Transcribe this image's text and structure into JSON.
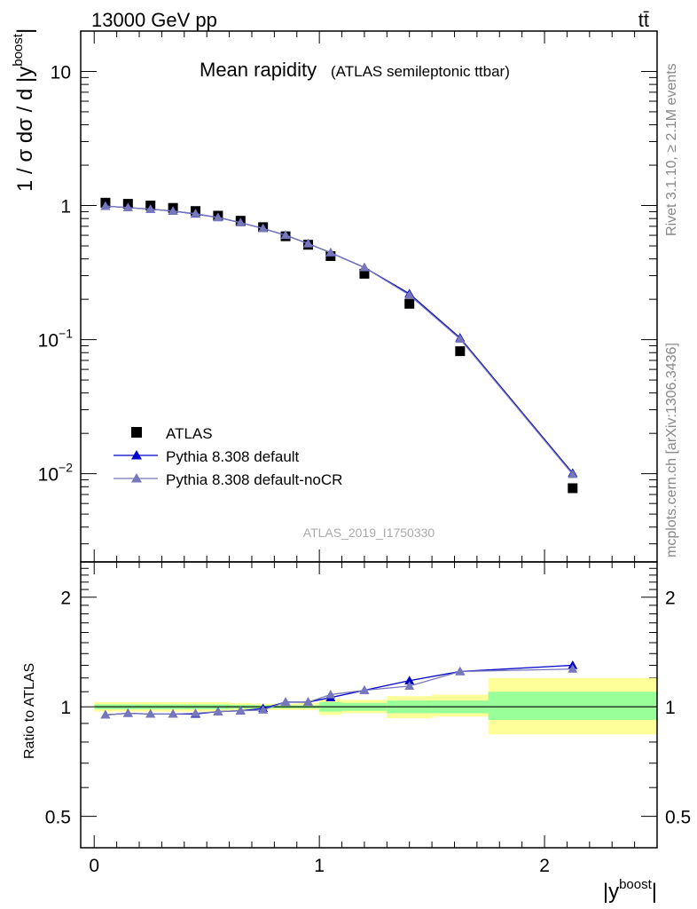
{
  "header": {
    "energy_label": "13000 GeV pp",
    "process_label": "tt̄"
  },
  "side_labels": {
    "rivet": "Rivet 3.1.10, ≥ 2.1M events",
    "mcplots": "mcplots.cern.ch [arXiv:1306.3436]"
  },
  "chart_data": [
    {
      "type": "scatter",
      "panel": "main",
      "title": "Mean rapidity",
      "subtitle": "(ATLAS semileptonic ttbar)",
      "watermark": "ATLAS_2019_I1750330",
      "ylabel": "1 / σ dσ / d |y",
      "ylabel_sup": "boost",
      "ylabel_end": "|",
      "yscale": "log",
      "ylim": [
        0.0022,
        20
      ],
      "xlim": [
        -0.06,
        2.5
      ],
      "legend_position": "bottom-left",
      "y_ticks": [
        {
          "value": 10,
          "label": "10",
          "sup": ""
        },
        {
          "value": 1,
          "label": "1",
          "sup": ""
        },
        {
          "value": 0.1,
          "label": "10",
          "sup": "−1"
        },
        {
          "value": 0.01,
          "label": "10",
          "sup": "−2"
        }
      ],
      "series": [
        {
          "name": "ATLAS",
          "style": "square",
          "color": "#000000",
          "x": [
            0.05,
            0.15,
            0.25,
            0.35,
            0.45,
            0.55,
            0.65,
            0.75,
            0.85,
            0.95,
            1.05,
            1.2,
            1.4,
            1.625,
            2.125
          ],
          "y": [
            1.05,
            1.03,
            1.0,
            0.96,
            0.91,
            0.84,
            0.77,
            0.69,
            0.59,
            0.51,
            0.42,
            0.31,
            0.185,
            0.082,
            0.0078
          ]
        },
        {
          "name": "Pythia 8.308 default",
          "style": "triangle",
          "color": "#0000cc",
          "x": [
            0.05,
            0.15,
            0.25,
            0.35,
            0.45,
            0.55,
            0.65,
            0.75,
            0.85,
            0.95,
            1.05,
            1.2,
            1.4,
            1.625,
            2.125
          ],
          "y": [
            0.99,
            0.965,
            0.94,
            0.91,
            0.865,
            0.815,
            0.745,
            0.675,
            0.6,
            0.52,
            0.445,
            0.345,
            0.22,
            0.103,
            0.0101
          ]
        },
        {
          "name": "Pythia 8.308 default-noCR",
          "style": "triangle",
          "color": "#7777bb",
          "x": [
            0.05,
            0.15,
            0.25,
            0.35,
            0.45,
            0.55,
            0.65,
            0.75,
            0.85,
            0.95,
            1.05,
            1.2,
            1.4,
            1.625,
            2.125
          ],
          "y": [
            0.99,
            0.965,
            0.94,
            0.91,
            0.87,
            0.815,
            0.745,
            0.675,
            0.6,
            0.52,
            0.445,
            0.345,
            0.215,
            0.101,
            0.0099
          ]
        }
      ]
    },
    {
      "type": "line",
      "panel": "ratio",
      "ylabel": "Ratio to ATLAS",
      "xlabel": "|y",
      "xlabel_sup": "boost",
      "xlabel_end": "|",
      "yscale": "log",
      "ylim": [
        0.41,
        2.5
      ],
      "xlim": [
        -0.06,
        2.5
      ],
      "x_ticks": [
        {
          "value": 0,
          "label": "0"
        },
        {
          "value": 1,
          "label": "1"
        },
        {
          "value": 2,
          "label": "2"
        }
      ],
      "y_ticks": [
        {
          "value": 2,
          "label": "2"
        },
        {
          "value": 1,
          "label": "1"
        },
        {
          "value": 0.5,
          "label": "0.5"
        }
      ],
      "uncertainty_bands": {
        "edges": [
          0,
          0.1,
          0.2,
          0.3,
          0.4,
          0.5,
          0.6,
          0.7,
          0.8,
          0.9,
          1.0,
          1.1,
          1.3,
          1.5,
          1.75,
          2.5
        ],
        "stat_syst_low": [
          0.97,
          0.97,
          0.97,
          0.97,
          0.97,
          0.97,
          0.975,
          0.98,
          0.98,
          0.98,
          0.95,
          0.96,
          0.93,
          0.94,
          0.84
        ],
        "stat_syst_high": [
          1.03,
          1.03,
          1.03,
          1.03,
          1.03,
          1.03,
          1.025,
          1.02,
          1.02,
          1.025,
          1.05,
          1.045,
          1.07,
          1.08,
          1.2
        ],
        "stat_low": [
          0.985,
          0.985,
          0.985,
          0.985,
          0.985,
          0.985,
          0.988,
          0.99,
          0.99,
          0.99,
          0.97,
          0.975,
          0.96,
          0.96,
          0.92
        ],
        "stat_high": [
          1.015,
          1.015,
          1.015,
          1.015,
          1.015,
          1.015,
          1.012,
          1.01,
          1.01,
          1.01,
          1.03,
          1.025,
          1.04,
          1.04,
          1.1
        ],
        "colors": {
          "stat_syst": "#ffff99",
          "stat": "#99ff99"
        }
      },
      "series": [
        {
          "name": "Pythia 8.308 default",
          "color": "#0000cc",
          "x": [
            0.05,
            0.15,
            0.25,
            0.35,
            0.45,
            0.55,
            0.65,
            0.75,
            0.85,
            0.95,
            1.05,
            1.2,
            1.4,
            1.625,
            2.125
          ],
          "y": [
            0.95,
            0.96,
            0.955,
            0.955,
            0.955,
            0.97,
            0.975,
            0.99,
            1.03,
            1.03,
            1.06,
            1.11,
            1.18,
            1.25,
            1.3
          ]
        },
        {
          "name": "Pythia 8.308 default-noCR",
          "color": "#7777bb",
          "x": [
            0.05,
            0.15,
            0.25,
            0.35,
            0.45,
            0.55,
            0.65,
            0.75,
            0.85,
            0.95,
            1.05,
            1.2,
            1.4,
            1.625,
            2.125
          ],
          "y": [
            0.95,
            0.96,
            0.955,
            0.955,
            0.96,
            0.97,
            0.975,
            0.98,
            1.03,
            1.03,
            1.08,
            1.11,
            1.14,
            1.25,
            1.27
          ]
        }
      ]
    }
  ]
}
